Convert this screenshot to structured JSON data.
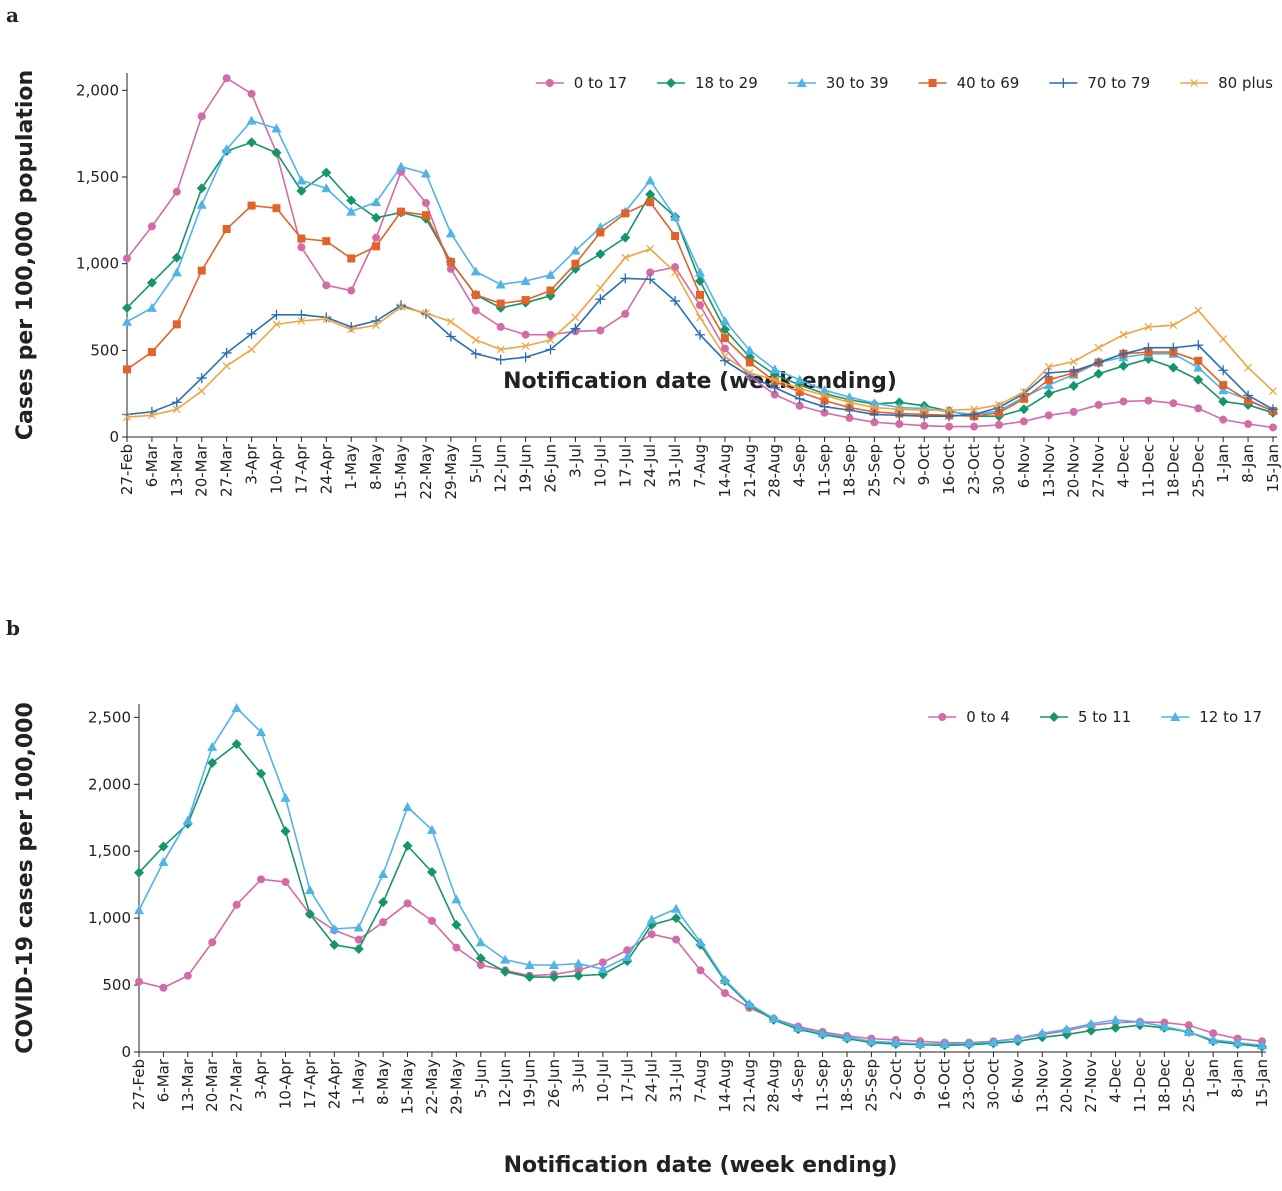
{
  "chart_data": [
    {
      "type": "line",
      "panel_label": "a",
      "y_label": "Cases per 100,000 population",
      "x_label": "Notification date (week ending)",
      "categories": [
        "27-Feb",
        "6-Mar",
        "13-Mar",
        "20-Mar",
        "27-Mar",
        "3-Apr",
        "10-Apr",
        "17-Apr",
        "24-Apr",
        "1-May",
        "8-May",
        "15-May",
        "22-May",
        "29-May",
        "5-Jun",
        "12-Jun",
        "19-Jun",
        "26-Jun",
        "3-Jul",
        "10-Jul",
        "17-Jul",
        "24-Jul",
        "31-Jul",
        "7-Aug",
        "14-Aug",
        "21-Aug",
        "28-Aug",
        "4-Sep",
        "11-Sep",
        "18-Sep",
        "25-Sep",
        "2-Oct",
        "9-Oct",
        "16-Oct",
        "23-Oct",
        "30-Oct",
        "6-Nov",
        "13-Nov",
        "20-Nov",
        "27-Nov",
        "4-Dec",
        "11-Dec",
        "18-Dec",
        "25-Dec",
        "1-Jan",
        "8-Jan",
        "15-Jan"
      ],
      "ylim": [
        0,
        2100
      ],
      "yticks": [
        0,
        500,
        {
          "value": 1000,
          "label": "1,000"
        },
        {
          "value": 1500,
          "label": "1,500"
        },
        {
          "value": 2000,
          "label": "2,000"
        }
      ],
      "grid": false,
      "legend": "top-right",
      "series": [
        {
          "name": "0 to 17",
          "color": "#d36ba6",
          "marker": "circle",
          "values": [
            1030,
            1215,
            1415,
            1850,
            2070,
            1980,
            1640,
            1095,
            875,
            845,
            1150,
            1530,
            1350,
            970,
            730,
            635,
            590,
            590,
            610,
            615,
            710,
            950,
            980,
            760,
            510,
            350,
            245,
            180,
            140,
            110,
            85,
            75,
            65,
            60,
            60,
            70,
            90,
            125,
            145,
            185,
            205,
            210,
            195,
            165,
            100,
            75,
            55
          ]
        },
        {
          "name": "18 to 29",
          "color": "#17956a",
          "marker": "diamond",
          "values": [
            745,
            890,
            1035,
            1435,
            1650,
            1700,
            1640,
            1420,
            1525,
            1365,
            1265,
            1295,
            1260,
            1010,
            820,
            745,
            775,
            815,
            970,
            1055,
            1150,
            1400,
            1270,
            900,
            620,
            460,
            360,
            300,
            250,
            215,
            190,
            200,
            180,
            150,
            120,
            120,
            160,
            250,
            295,
            365,
            410,
            450,
            400,
            330,
            205,
            185,
            140
          ]
        },
        {
          "name": "30 to 39",
          "color": "#50b4e6",
          "marker": "triangle",
          "values": [
            665,
            745,
            950,
            1340,
            1660,
            1825,
            1780,
            1480,
            1435,
            1300,
            1355,
            1560,
            1520,
            1175,
            955,
            880,
            900,
            935,
            1075,
            1210,
            1300,
            1480,
            1270,
            950,
            670,
            500,
            390,
            330,
            270,
            230,
            195,
            170,
            165,
            145,
            130,
            150,
            230,
            300,
            360,
            430,
            460,
            480,
            480,
            400,
            270,
            215,
            150
          ]
        },
        {
          "name": "40 to 69",
          "color": "#e0632a",
          "marker": "square",
          "values": [
            390,
            490,
            650,
            960,
            1200,
            1335,
            1320,
            1145,
            1130,
            1030,
            1100,
            1300,
            1280,
            1010,
            820,
            770,
            790,
            845,
            1000,
            1180,
            1290,
            1355,
            1160,
            820,
            570,
            430,
            320,
            260,
            210,
            170,
            145,
            135,
            130,
            125,
            120,
            140,
            220,
            330,
            370,
            430,
            480,
            490,
            490,
            440,
            300,
            210,
            150
          ]
        },
        {
          "name": "70 to 79",
          "color": "#2b6db3",
          "marker": "plus",
          "values": [
            130,
            145,
            200,
            340,
            485,
            595,
            705,
            705,
            690,
            635,
            670,
            760,
            710,
            580,
            480,
            445,
            460,
            505,
            625,
            795,
            915,
            910,
            785,
            590,
            440,
            350,
            285,
            220,
            175,
            155,
            130,
            125,
            120,
            120,
            130,
            170,
            250,
            370,
            380,
            430,
            480,
            515,
            515,
            530,
            385,
            240,
            160
          ]
        },
        {
          "name": "80 plus",
          "color": "#f0a340",
          "marker": "x",
          "values": [
            115,
            125,
            160,
            265,
            410,
            505,
            650,
            670,
            680,
            620,
            645,
            750,
            715,
            665,
            560,
            505,
            525,
            560,
            690,
            860,
            1035,
            1085,
            950,
            690,
            465,
            370,
            330,
            280,
            240,
            200,
            170,
            160,
            155,
            155,
            160,
            185,
            260,
            405,
            435,
            515,
            590,
            635,
            645,
            730,
            565,
            400,
            265
          ]
        }
      ]
    },
    {
      "type": "line",
      "panel_label": "b",
      "y_label": "COVID-19 cases per 100,000",
      "x_label": "Notification date (week ending)",
      "categories": [
        "27-Feb",
        "6-Mar",
        "13-Mar",
        "20-Mar",
        "27-Mar",
        "3-Apr",
        "10-Apr",
        "17-Apr",
        "24-Apr",
        "1-May",
        "8-May",
        "15-May",
        "22-May",
        "29-May",
        "5-Jun",
        "12-Jun",
        "19-Jun",
        "26-Jun",
        "3-Jul",
        "10-Jul",
        "17-Jul",
        "24-Jul",
        "31-Jul",
        "7-Aug",
        "14-Aug",
        "21-Aug",
        "28-Aug",
        "4-Sep",
        "11-Sep",
        "18-Sep",
        "25-Sep",
        "2-Oct",
        "9-Oct",
        "16-Oct",
        "23-Oct",
        "30-Oct",
        "6-Nov",
        "13-Nov",
        "20-Nov",
        "27-Nov",
        "4-Dec",
        "11-Dec",
        "18-Dec",
        "25-Dec",
        "1-Jan",
        "8-Jan",
        "15-Jan"
      ],
      "ylim": [
        0,
        2600
      ],
      "yticks": [
        0,
        500,
        {
          "value": 1000,
          "label": "1,000"
        },
        {
          "value": 1500,
          "label": "1,500"
        },
        {
          "value": 2000,
          "label": "2,000"
        },
        {
          "value": 2500,
          "label": "2,500"
        }
      ],
      "grid": false,
      "legend": "top-right",
      "series": [
        {
          "name": "0 to 4",
          "color": "#d36ba6",
          "marker": "circle",
          "values": [
            525,
            480,
            570,
            820,
            1100,
            1290,
            1270,
            1030,
            910,
            840,
            970,
            1110,
            980,
            780,
            650,
            610,
            570,
            580,
            610,
            670,
            760,
            880,
            840,
            610,
            440,
            330,
            250,
            190,
            150,
            120,
            100,
            90,
            80,
            70,
            70,
            80,
            100,
            130,
            160,
            200,
            220,
            225,
            220,
            200,
            140,
            100,
            80
          ]
        },
        {
          "name": "5 to 11",
          "color": "#17956a",
          "marker": "diamond",
          "values": [
            1340,
            1535,
            1705,
            2160,
            2300,
            2080,
            1650,
            1030,
            800,
            770,
            1120,
            1540,
            1345,
            950,
            700,
            600,
            560,
            560,
            570,
            580,
            680,
            950,
            1000,
            800,
            530,
            350,
            240,
            170,
            130,
            100,
            70,
            60,
            55,
            50,
            55,
            65,
            80,
            110,
            130,
            160,
            180,
            200,
            180,
            150,
            80,
            60,
            40
          ]
        },
        {
          "name": "12 to 17",
          "color": "#50b4e6",
          "marker": "triangle",
          "values": [
            1060,
            1420,
            1730,
            2280,
            2570,
            2390,
            1900,
            1210,
            920,
            930,
            1330,
            1830,
            1660,
            1140,
            820,
            690,
            650,
            650,
            660,
            620,
            710,
            990,
            1070,
            820,
            540,
            360,
            250,
            180,
            140,
            110,
            80,
            70,
            60,
            60,
            65,
            75,
            100,
            140,
            170,
            210,
            240,
            225,
            190,
            150,
            90,
            70,
            50
          ]
        }
      ]
    }
  ]
}
